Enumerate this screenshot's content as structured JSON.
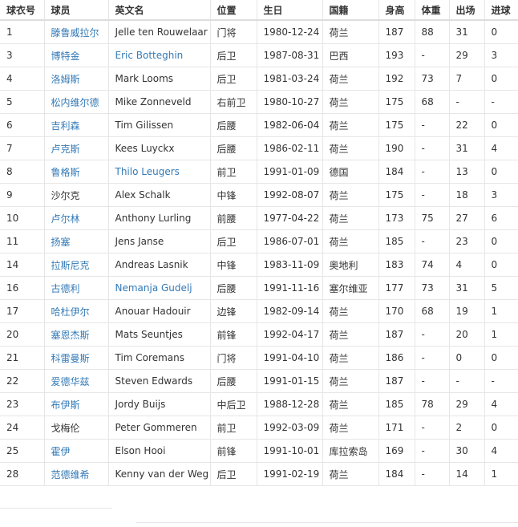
{
  "table": {
    "header": [
      "球衣号",
      "球员",
      "英文名",
      "位置",
      "生日",
      "国籍",
      "身高",
      "体重",
      "出场",
      "进球"
    ],
    "rows": [
      [
        "1",
        "滕鲁威拉尔",
        "Jelle ten Rouwelaar",
        "门将",
        "1980-12-24",
        "荷兰",
        "187",
        "88",
        "31",
        "0"
      ],
      [
        "3",
        "博特金",
        "Eric Botteghin",
        "后卫",
        "1987-08-31",
        "巴西",
        "193",
        "-",
        "29",
        "3"
      ],
      [
        "4",
        "洛姆斯",
        "Mark Looms",
        "后卫",
        "1981-03-24",
        "荷兰",
        "192",
        "73",
        "7",
        "0"
      ],
      [
        "5",
        "松内维尔德",
        "Mike Zonneveld",
        "右前卫",
        "1980-10-27",
        "荷兰",
        "175",
        "68",
        "-",
        "-"
      ],
      [
        "6",
        "吉利森",
        "Tim Gilissen",
        "后腰",
        "1982-06-04",
        "荷兰",
        "175",
        "-",
        "22",
        "0"
      ],
      [
        "7",
        "卢克斯",
        "Kees Luyckx",
        "后腰",
        "1986-02-11",
        "荷兰",
        "190",
        "-",
        "31",
        "4"
      ],
      [
        "8",
        "鲁格斯",
        "Thilo Leugers",
        "前卫",
        "1991-01-09",
        "德国",
        "184",
        "-",
        "13",
        "0"
      ],
      [
        "9",
        "沙尔克",
        "Alex Schalk",
        "中锋",
        "1992-08-07",
        "荷兰",
        "175",
        "-",
        "18",
        "3"
      ],
      [
        "10",
        "卢尔林",
        "Anthony Lurling",
        "前腰",
        "1977-04-22",
        "荷兰",
        "173",
        "75",
        "27",
        "6"
      ],
      [
        "11",
        "扬塞",
        "Jens Janse",
        "后卫",
        "1986-07-01",
        "荷兰",
        "185",
        "-",
        "23",
        "0"
      ],
      [
        "14",
        "拉斯尼克",
        "Andreas Lasnik",
        "中锋",
        "1983-11-09",
        "奥地利",
        "183",
        "74",
        "4",
        "0"
      ],
      [
        "16",
        "古德利",
        "Nemanja Gudelj",
        "后腰",
        "1991-11-16",
        "塞尔维亚",
        "177",
        "73",
        "31",
        "5"
      ],
      [
        "17",
        "哈杜伊尔",
        "Anouar Hadouir",
        "边锋",
        "1982-09-14",
        "荷兰",
        "170",
        "68",
        "19",
        "1"
      ],
      [
        "20",
        "塞恩杰斯",
        "Mats Seuntjes",
        "前锋",
        "1992-04-17",
        "荷兰",
        "187",
        "-",
        "20",
        "1"
      ],
      [
        "21",
        "科雷曼斯",
        "Tim Coremans",
        "门将",
        "1991-04-10",
        "荷兰",
        "186",
        "-",
        "0",
        "0"
      ],
      [
        "22",
        "爱德华兹",
        "Steven Edwards",
        "后腰",
        "1991-01-15",
        "荷兰",
        "187",
        "-",
        "-",
        "-"
      ],
      [
        "23",
        "布伊斯",
        "Jordy Buijs",
        "中后卫",
        "1988-12-28",
        "荷兰",
        "185",
        "78",
        "29",
        "4"
      ],
      [
        "24",
        "戈梅伦",
        "Peter Gommeren",
        "前卫",
        "1992-03-09",
        "荷兰",
        "171",
        "-",
        "2",
        "0"
      ],
      [
        "25",
        "霍伊",
        "Elson Hooi",
        "前锋",
        "1991-10-01",
        "库拉索岛",
        "169",
        "-",
        "30",
        "4"
      ],
      [
        "28",
        "范德维希",
        "Kenny van der Weg",
        "后卫",
        "1991-02-19",
        "荷兰",
        "184",
        "-",
        "14",
        "1"
      ]
    ]
  }
}
